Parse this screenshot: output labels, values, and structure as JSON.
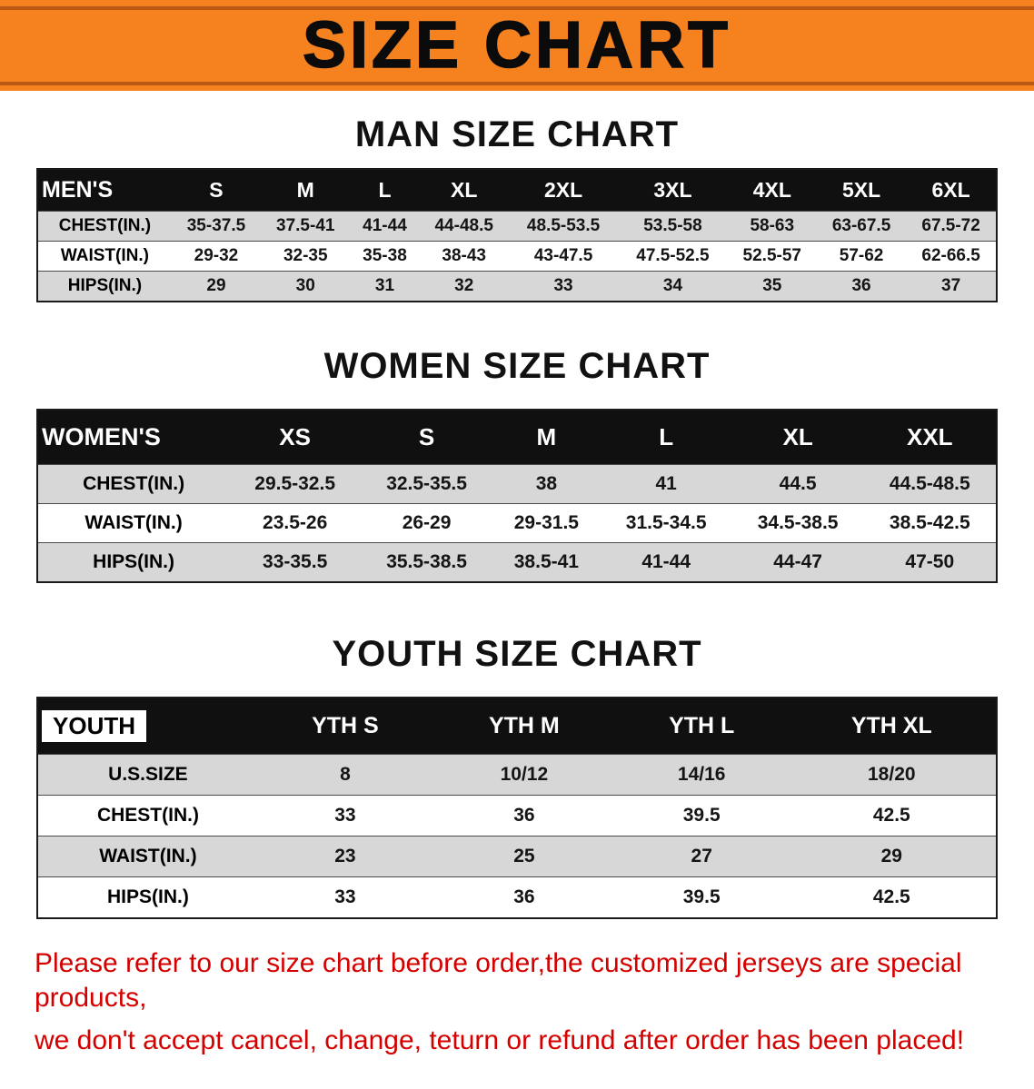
{
  "banner": {
    "title": "SIZE CHART"
  },
  "colors": {
    "banner-bg": "#F6821F",
    "banner-line": "#BA5814",
    "header-bg": "#101010",
    "stripe": "#D7D7D7",
    "accent-red": "#D40000"
  },
  "sections": [
    {
      "id": "mens",
      "heading": "MAN SIZE CHART",
      "corner_boxed": false,
      "header": [
        "MEN'S",
        "S",
        "M",
        "L",
        "XL",
        "2XL",
        "3XL",
        "4XL",
        "5XL",
        "6XL"
      ],
      "rows": [
        {
          "label": "CHEST(IN.)",
          "values": [
            "35-37.5",
            "37.5-41",
            "41-44",
            "44-48.5",
            "48.5-53.5",
            "53.5-58",
            "58-63",
            "63-67.5",
            "67.5-72"
          ]
        },
        {
          "label": "WAIST(IN.)",
          "values": [
            "29-32",
            "32-35",
            "35-38",
            "38-43",
            "43-47.5",
            "47.5-52.5",
            "52.5-57",
            "57-62",
            "62-66.5"
          ]
        },
        {
          "label": "HIPS(IN.)",
          "values": [
            "29",
            "30",
            "31",
            "32",
            "33",
            "34",
            "35",
            "36",
            "37"
          ]
        }
      ]
    },
    {
      "id": "womens",
      "heading": "WOMEN SIZE CHART",
      "corner_boxed": false,
      "header": [
        "WOMEN'S",
        "XS",
        "S",
        "M",
        "L",
        "XL",
        "XXL"
      ],
      "rows": [
        {
          "label": "CHEST(IN.)",
          "values": [
            "29.5-32.5",
            "32.5-35.5",
            "38",
            "41",
            "44.5",
            "44.5-48.5"
          ]
        },
        {
          "label": "WAIST(IN.)",
          "values": [
            "23.5-26",
            "26-29",
            "29-31.5",
            "31.5-34.5",
            "34.5-38.5",
            "38.5-42.5"
          ]
        },
        {
          "label": "HIPS(IN.)",
          "values": [
            "33-35.5",
            "35.5-38.5",
            "38.5-41",
            "41-44",
            "44-47",
            "47-50"
          ]
        }
      ]
    },
    {
      "id": "youth",
      "heading": "YOUTH SIZE CHART",
      "corner_boxed": true,
      "header": [
        "YOUTH",
        "YTH S",
        "YTH M",
        "YTH L",
        "YTH XL"
      ],
      "rows": [
        {
          "label": "U.S.SIZE",
          "values": [
            "8",
            "10/12",
            "14/16",
            "18/20"
          ]
        },
        {
          "label": "CHEST(IN.)",
          "values": [
            "33",
            "36",
            "39.5",
            "42.5"
          ]
        },
        {
          "label": "WAIST(IN.)",
          "values": [
            "23",
            "25",
            "27",
            "29"
          ]
        },
        {
          "label": "HIPS(IN.)",
          "values": [
            "33",
            "36",
            "39.5",
            "42.5"
          ]
        }
      ]
    }
  ],
  "footer": {
    "line1": "Please refer to our size chart before order,the customized jerseys are special products,",
    "line2": "we don't accept cancel, change, teturn or refund after order has been placed!"
  }
}
